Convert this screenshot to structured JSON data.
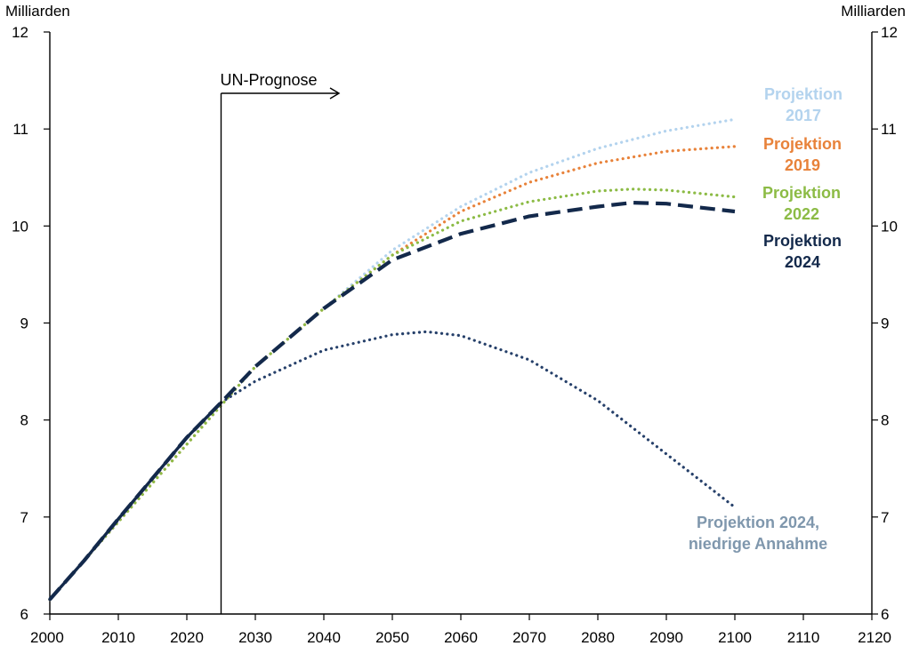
{
  "chart_data": {
    "type": "line",
    "ylabel_left": "Milliarden",
    "ylabel_right": "Milliarden",
    "xlim": [
      2000,
      2120
    ],
    "ylim": [
      6,
      12
    ],
    "x_ticks": [
      "2000",
      "2010",
      "2020",
      "2030",
      "2040",
      "2050",
      "2060",
      "2070",
      "2080",
      "2090",
      "2100",
      "2110",
      "2120"
    ],
    "y_ticks": [
      "6",
      "7",
      "8",
      "9",
      "10",
      "11",
      "12"
    ],
    "grid": false,
    "annotation": {
      "label": "UN-Prognose",
      "x": 2025
    },
    "series": [
      {
        "key": "p2017",
        "name_lines": [
          "Projektion",
          "2017"
        ],
        "color": "#b3d3ee",
        "style": "dotted",
        "x": [
          2000,
          2005,
          2010,
          2015,
          2020,
          2025,
          2030,
          2040,
          2050,
          2060,
          2070,
          2080,
          2090,
          2100
        ],
        "y": [
          6.15,
          6.55,
          6.95,
          7.35,
          7.75,
          8.15,
          8.55,
          9.15,
          9.75,
          10.2,
          10.55,
          10.8,
          10.98,
          11.1
        ]
      },
      {
        "key": "p2019",
        "name_lines": [
          "Projektion",
          "2019"
        ],
        "color": "#e8823a",
        "style": "dotted",
        "x": [
          2000,
          2005,
          2010,
          2015,
          2020,
          2025,
          2030,
          2040,
          2050,
          2060,
          2070,
          2080,
          2090,
          2100
        ],
        "y": [
          6.15,
          6.55,
          6.95,
          7.35,
          7.75,
          8.15,
          8.55,
          9.15,
          9.7,
          10.15,
          10.45,
          10.65,
          10.77,
          10.82
        ]
      },
      {
        "key": "p2022",
        "name_lines": [
          "Projektion",
          "2022"
        ],
        "color": "#8cbb45",
        "style": "dotted",
        "x": [
          2000,
          2005,
          2010,
          2015,
          2020,
          2025,
          2030,
          2040,
          2050,
          2060,
          2070,
          2080,
          2085,
          2090,
          2100
        ],
        "y": [
          6.15,
          6.55,
          6.95,
          7.35,
          7.75,
          8.15,
          8.55,
          9.15,
          9.7,
          10.05,
          10.25,
          10.36,
          10.38,
          10.37,
          10.3
        ]
      },
      {
        "key": "p2024",
        "name_lines": [
          "Projektion",
          "2024"
        ],
        "color": "#13294b",
        "style": "dashed",
        "x": [
          2000,
          2005,
          2010,
          2015,
          2020,
          2025,
          2030,
          2040,
          2050,
          2060,
          2070,
          2080,
          2085,
          2090,
          2100
        ],
        "y": [
          6.15,
          6.55,
          6.98,
          7.4,
          7.82,
          8.18,
          8.55,
          9.15,
          9.65,
          9.92,
          10.1,
          10.2,
          10.24,
          10.23,
          10.15
        ]
      },
      {
        "key": "p2024low",
        "name_lines": [
          "Projektion 2024,",
          "niedrige Annahme"
        ],
        "color": "#26406a",
        "label_color": "#7f97ad",
        "style": "dotted",
        "x": [
          2025,
          2030,
          2040,
          2050,
          2055,
          2060,
          2070,
          2080,
          2090,
          2100
        ],
        "y": [
          8.18,
          8.4,
          8.72,
          8.88,
          8.91,
          8.87,
          8.62,
          8.2,
          7.65,
          7.1
        ]
      },
      {
        "key": "history",
        "color": "#13294b",
        "style": "solid",
        "x": [
          2000,
          2005,
          2010,
          2015,
          2020,
          2025
        ],
        "y": [
          6.15,
          6.55,
          6.98,
          7.4,
          7.82,
          8.18
        ]
      }
    ]
  }
}
